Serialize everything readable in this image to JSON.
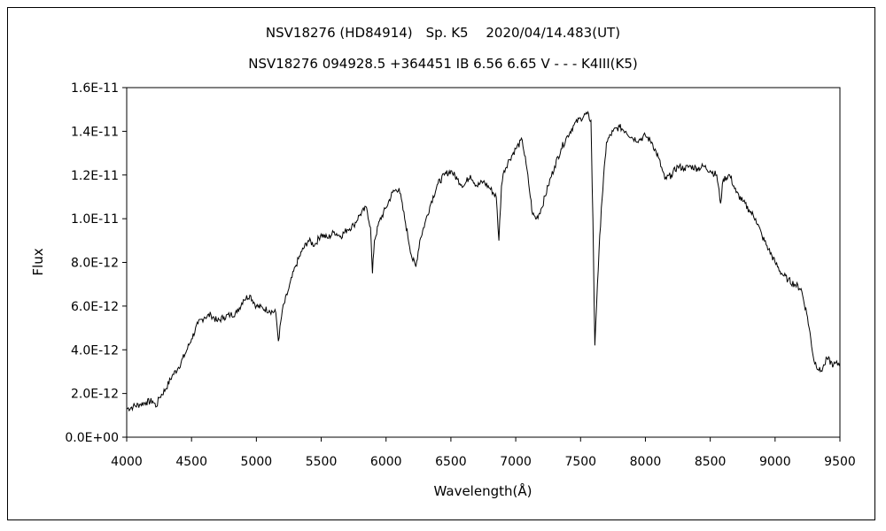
{
  "chart_data": {
    "type": "line",
    "title": "NSV18276 (HD84914)　Sp. K5　 2020/04/14.483(UT)",
    "subtitle": "NSV18276 094928.5 +364451 IB 6.56 6.65 V - - - K4III(K5)",
    "xlabel": "Wavelength(Å)",
    "ylabel": "Flux",
    "xlim": [
      4000,
      9500
    ],
    "ylim": [
      0,
      1.6e-11
    ],
    "x_ticks": [
      4000,
      4500,
      5000,
      5500,
      6000,
      6500,
      7000,
      7500,
      8000,
      8500,
      9000,
      9500
    ],
    "y_ticks": [
      0,
      2e-12,
      4e-12,
      6e-12,
      8e-12,
      1e-11,
      1.2e-11,
      1.4e-11,
      1.6e-11
    ],
    "x_tick_labels": [
      "4000",
      "4500",
      "5000",
      "5500",
      "6000",
      "6500",
      "7000",
      "7500",
      "8000",
      "8500",
      "9000",
      "9500"
    ],
    "y_tick_labels": [
      "0.0E+00",
      "2.0E-12",
      "4.0E-12",
      "6.0E-12",
      "8.0E-12",
      "1.0E-11",
      "1.2E-11",
      "1.4E-11",
      "1.6E-11"
    ],
    "grid": false,
    "legend": "none",
    "line_color": "#000000",
    "series": [
      {
        "x": [
          4000,
          4050,
          4100,
          4150,
          4200,
          4230,
          4250,
          4300,
          4350,
          4400,
          4450,
          4500,
          4550,
          4600,
          4650,
          4700,
          4750,
          4800,
          4850,
          4900,
          4950,
          5000,
          5050,
          5100,
          5150,
          5170,
          5200,
          5250,
          5300,
          5350,
          5400,
          5450,
          5500,
          5550,
          5600,
          5650,
          5700,
          5750,
          5800,
          5850,
          5880,
          5895,
          5910,
          5950,
          6000,
          6050,
          6100,
          6150,
          6200,
          6230,
          6260,
          6300,
          6350,
          6400,
          6450,
          6500,
          6550,
          6600,
          6650,
          6700,
          6750,
          6800,
          6850,
          6870,
          6890,
          6910,
          6950,
          7000,
          7050,
          7080,
          7100,
          7130,
          7160,
          7200,
          7250,
          7300,
          7350,
          7400,
          7450,
          7500,
          7550,
          7580,
          7595,
          7610,
          7630,
          7660,
          7700,
          7750,
          7800,
          7850,
          7900,
          7950,
          8000,
          8050,
          8100,
          8150,
          8200,
          8250,
          8300,
          8350,
          8400,
          8450,
          8500,
          8550,
          8580,
          8600,
          8650,
          8700,
          8750,
          8800,
          8850,
          8900,
          8950,
          9000,
          9050,
          9100,
          9150,
          9200,
          9250,
          9300,
          9350,
          9380,
          9400,
          9450,
          9500
        ],
        "y": [
          1.3e-12,
          1.4e-12,
          1.5e-12,
          1.6e-12,
          1.65e-12,
          1.4e-12,
          1.8e-12,
          2.2e-12,
          2.8e-12,
          3.2e-12,
          3.8e-12,
          4.5e-12,
          5.2e-12,
          5.5e-12,
          5.6e-12,
          5.3e-12,
          5.5e-12,
          5.6e-12,
          5.7e-12,
          6.3e-12,
          6.5e-12,
          6e-12,
          5.9e-12,
          5.8e-12,
          5.7e-12,
          4.4e-12,
          5.8e-12,
          6.8e-12,
          7.8e-12,
          8.5e-12,
          9e-12,
          8.8e-12,
          9.3e-12,
          9.1e-12,
          9.4e-12,
          9.2e-12,
          9.5e-12,
          9.7e-12,
          1.02e-11,
          1.05e-11,
          9.6e-12,
          7.5e-12,
          9e-12,
          9.9e-12,
          1.05e-11,
          1.12e-11,
          1.14e-11,
          9.8e-12,
          8.2e-12,
          7.8e-12,
          9e-12,
          9.8e-12,
          1.08e-11,
          1.16e-11,
          1.2e-11,
          1.22e-11,
          1.18e-11,
          1.15e-11,
          1.2e-11,
          1.15e-11,
          1.17e-11,
          1.14e-11,
          1.1e-11,
          9e-12,
          1.15e-11,
          1.22e-11,
          1.27e-11,
          1.32e-11,
          1.36e-11,
          1.25e-11,
          1.16e-11,
          1.02e-11,
          1e-11,
          1.05e-11,
          1.15e-11,
          1.24e-11,
          1.32e-11,
          1.38e-11,
          1.43e-11,
          1.46e-11,
          1.48e-11,
          1.45e-11,
          1e-11,
          4.2e-12,
          7e-12,
          1.05e-11,
          1.35e-11,
          1.4e-11,
          1.42e-11,
          1.4e-11,
          1.37e-11,
          1.36e-11,
          1.38e-11,
          1.35e-11,
          1.28e-11,
          1.18e-11,
          1.2e-11,
          1.24e-11,
          1.23e-11,
          1.24e-11,
          1.23e-11,
          1.24e-11,
          1.22e-11,
          1.2e-11,
          1.07e-11,
          1.18e-11,
          1.2e-11,
          1.12e-11,
          1.08e-11,
          1.04e-11,
          1e-11,
          9.2e-12,
          8.6e-12,
          8e-12,
          7.5e-12,
          7.2e-12,
          7e-12,
          6.8e-12,
          5.5e-12,
          3.5e-12,
          3e-12,
          3.3e-12,
          3.6e-12,
          3.3e-12,
          3.4e-12
        ]
      }
    ]
  }
}
